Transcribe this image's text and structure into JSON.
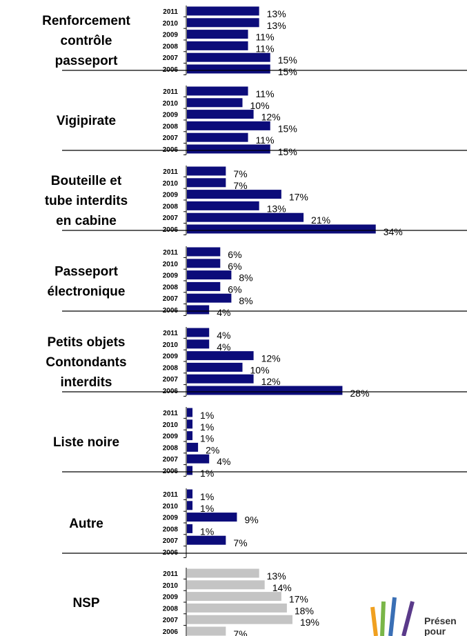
{
  "chart_data": {
    "type": "grouped-hbar",
    "categories": [
      "2011",
      "2010",
      "2009",
      "2008",
      "2007",
      "2006"
    ],
    "groups": [
      {
        "name": [
          "Renforcement",
          "contrôle",
          "passeport"
        ],
        "color": "#0c0c7a",
        "values": [
          13,
          13,
          11,
          11,
          15,
          15
        ],
        "value_labels": [
          "13%",
          "13%",
          "11%",
          "11%",
          "15%",
          "15%"
        ]
      },
      {
        "name": [
          "Vigipirate"
        ],
        "color": "#0c0c7a",
        "values": [
          11,
          10,
          12,
          15,
          11,
          15
        ],
        "value_labels": [
          "11%",
          "10%",
          "12%",
          "15%",
          "11%",
          "15%"
        ]
      },
      {
        "name": [
          "Bouteille et",
          "tube interdits",
          "en cabine"
        ],
        "color": "#0c0c7a",
        "values": [
          7,
          7,
          17,
          13,
          21,
          34
        ],
        "value_labels": [
          "7%",
          "7%",
          "17%",
          "13%",
          "21%",
          "34%"
        ]
      },
      {
        "name": [
          "Passeport",
          "électronique"
        ],
        "color": "#0c0c7a",
        "values": [
          6,
          6,
          8,
          6,
          8,
          4
        ],
        "value_labels": [
          "6%",
          "6%",
          "8%",
          "6%",
          "8%",
          "4%"
        ]
      },
      {
        "name": [
          "Petits objets",
          "Contondants",
          "interdits"
        ],
        "color": "#0c0c7a",
        "values": [
          4,
          4,
          12,
          10,
          12,
          28
        ],
        "value_labels": [
          "4%",
          "4%",
          "12%",
          "10%",
          "12%",
          "28%"
        ]
      },
      {
        "name": [
          "Liste noire"
        ],
        "color": "#0c0c7a",
        "values": [
          1,
          1,
          1,
          2,
          4,
          1
        ],
        "value_labels": [
          "1%",
          "1%",
          "1%",
          "2%",
          "4%",
          "1%"
        ]
      },
      {
        "name": [
          "Autre"
        ],
        "color": "#0c0c7a",
        "values": [
          1,
          1,
          9,
          1,
          7,
          null
        ],
        "value_labels": [
          "1%",
          "1%",
          "9%",
          "1%",
          "7%",
          null
        ]
      },
      {
        "name": [
          "NSP"
        ],
        "color": "#c4c4c4",
        "values": [
          13,
          14,
          17,
          18,
          19,
          7
        ],
        "value_labels": [
          "13%",
          "14%",
          "17%",
          "18%",
          "19%",
          "7%"
        ]
      }
    ]
  },
  "logo": [
    "Présen",
    "pour"
  ]
}
